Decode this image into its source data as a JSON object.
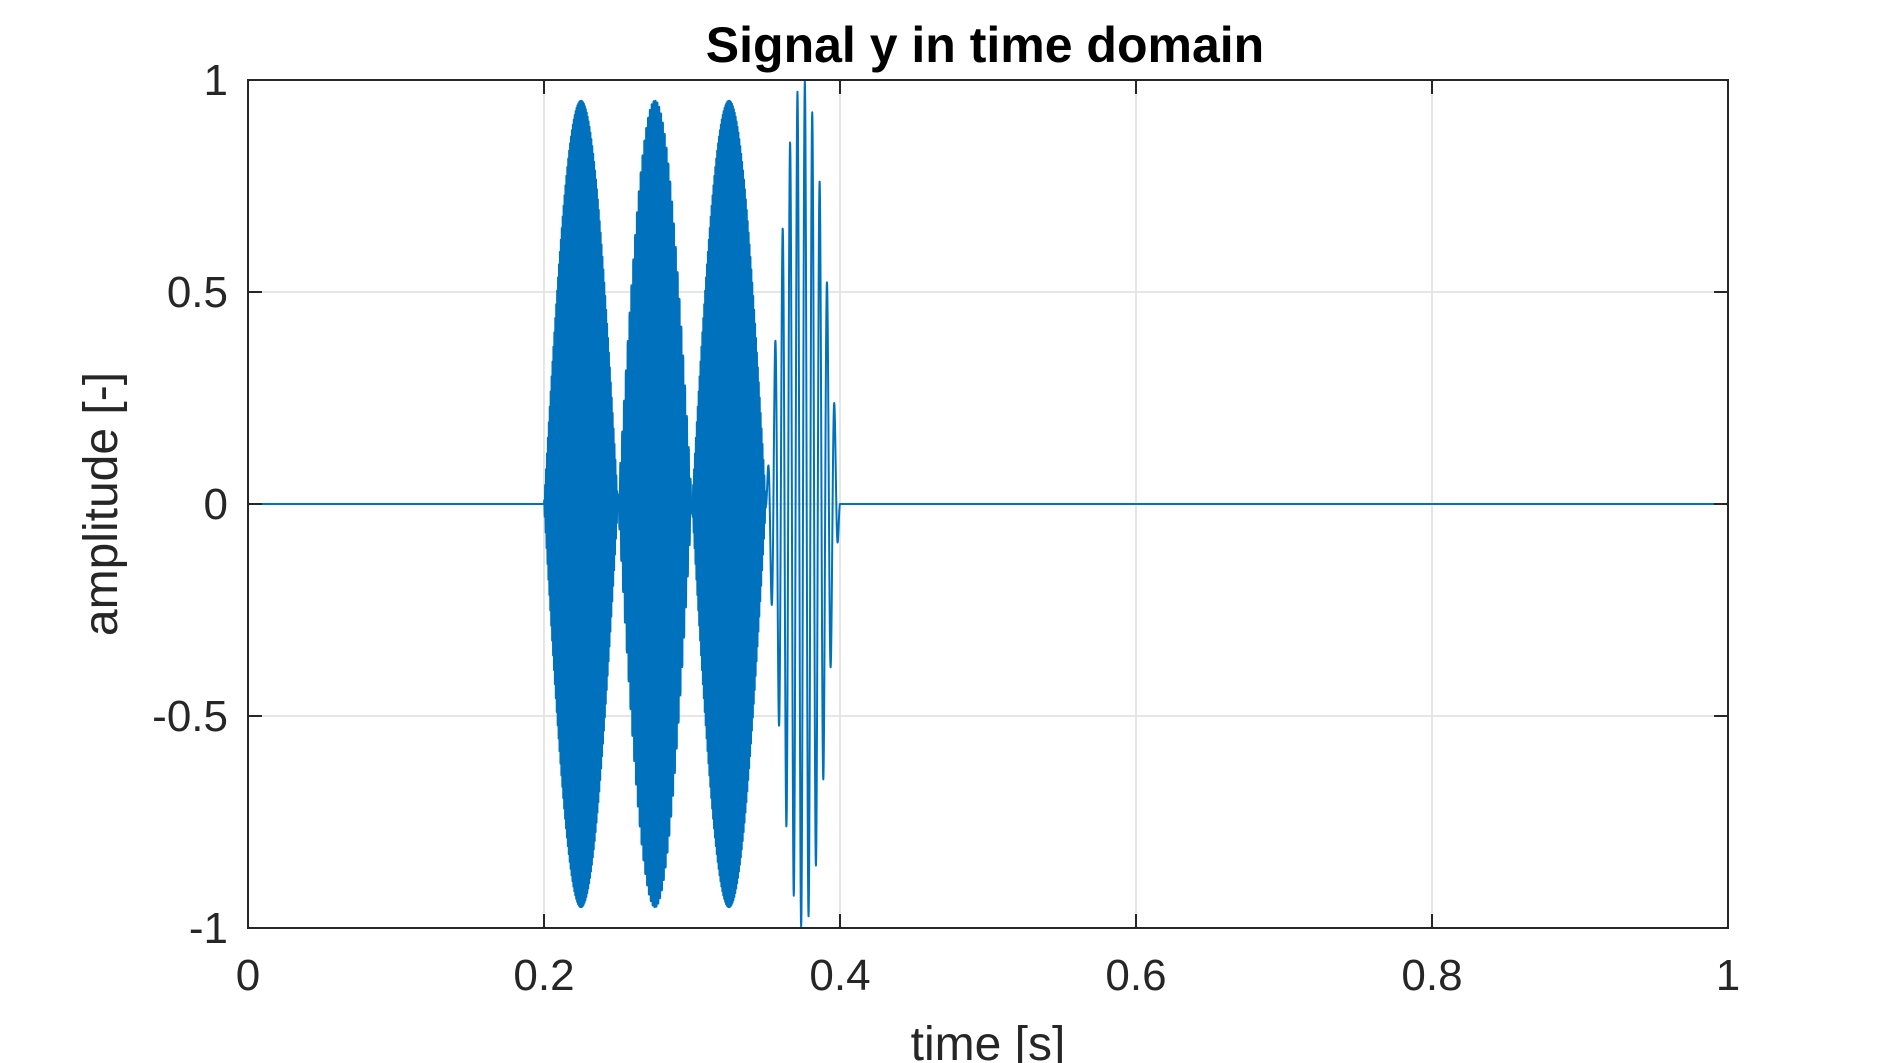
{
  "chart_data": {
    "type": "line",
    "title": "Signal y in time domain",
    "xlabel": "time [s]",
    "ylabel": "amplitude [-]",
    "xlim": [
      0,
      1
    ],
    "ylim": [
      -1,
      1
    ],
    "grid": true,
    "xticks": [
      0,
      0.2,
      0.4,
      0.6,
      0.8,
      1
    ],
    "xtick_labels": [
      "0",
      "0.2",
      "0.4",
      "0.6",
      "0.8",
      "1"
    ],
    "yticks": [
      -1,
      -0.5,
      0,
      0.5,
      1
    ],
    "ytick_labels": [
      "-1",
      "-0.5",
      "0",
      "0.5",
      "1"
    ],
    "line_color": "#0072BD",
    "series": [
      {
        "bursts": [
          {
            "t_start": 0.2,
            "t_end": 0.25,
            "frequency_hz": 1600,
            "peak_amplitude": 1.0
          },
          {
            "t_start": 0.25,
            "t_end": 0.3,
            "frequency_hz": 800,
            "peak_amplitude": 1.0
          },
          {
            "t_start": 0.3,
            "t_end": 0.35,
            "frequency_hz": 1600,
            "peak_amplitude": 1.0
          },
          {
            "t_start": 0.35,
            "t_end": 0.4,
            "frequency_hz": 200,
            "peak_amplitude": 1.0
          }
        ],
        "baseline": 0
      }
    ]
  }
}
